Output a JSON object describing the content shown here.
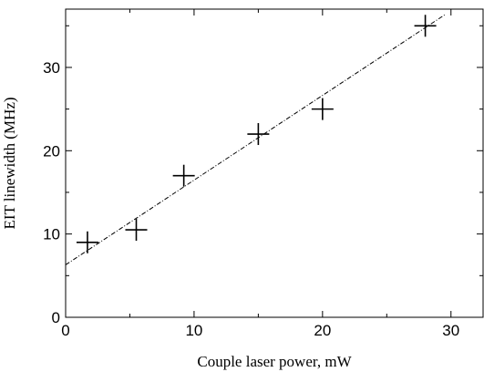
{
  "chart_data": {
    "type": "scatter",
    "xlabel": "Couple laser power, mW",
    "ylabel": "EIT linewidth (MHz)",
    "xlim": [
      0,
      32.5
    ],
    "ylim": [
      0,
      37
    ],
    "x_ticks": [
      0,
      10,
      20,
      30
    ],
    "y_ticks": [
      0,
      10,
      20,
      30
    ],
    "x_tick_labels": [
      "0",
      "10",
      "20",
      "30"
    ],
    "y_tick_labels": [
      "0",
      "10",
      "20",
      "30"
    ],
    "grid": false,
    "series": [
      {
        "marker": "plus",
        "color": "#000000",
        "points": [
          {
            "x": 1.7,
            "y": 9.0
          },
          {
            "x": 5.5,
            "y": 10.5
          },
          {
            "x": 9.2,
            "y": 17.0
          },
          {
            "x": 15.0,
            "y": 22.0
          },
          {
            "x": 20.0,
            "y": 25.0
          },
          {
            "x": 28.0,
            "y": 35.0
          }
        ]
      }
    ],
    "fit_line": {
      "style": "dash-dot",
      "color": "#000000",
      "from": {
        "x": 0,
        "y": 6.3
      },
      "to": {
        "x": 29.5,
        "y": 36.3
      }
    }
  }
}
